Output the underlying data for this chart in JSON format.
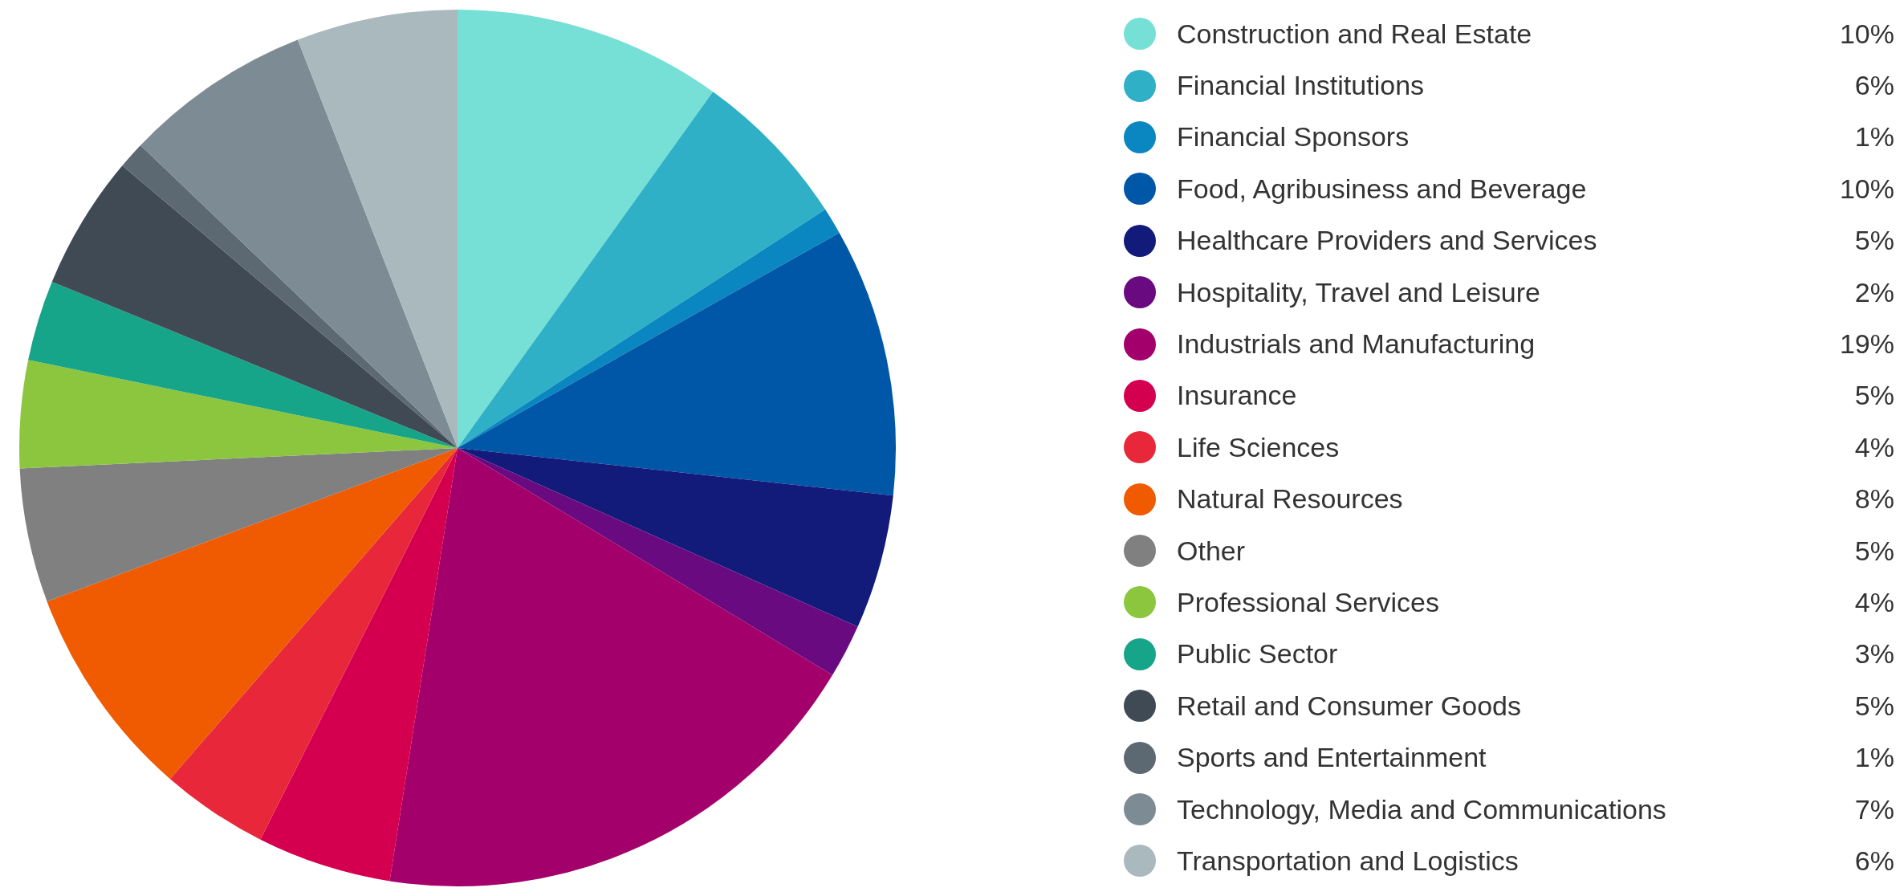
{
  "chart_data": {
    "type": "pie",
    "categories": [
      "Construction and Real Estate",
      "Financial Institutions",
      "Financial Sponsors",
      "Food, Agribusiness and Beverage",
      "Healthcare Providers and Services",
      "Hospitality, Travel and Leisure",
      "Industrials and Manufacturing",
      "Insurance",
      "Life Sciences",
      "Natural Resources",
      "Other",
      "Professional Services",
      "Public Sector",
      "Retail and Consumer Goods",
      "Sports and Entertainment",
      "Technology, Media and Communications",
      "Transportation and Logistics"
    ],
    "values": [
      10,
      6,
      1,
      10,
      5,
      2,
      19,
      5,
      4,
      8,
      5,
      4,
      3,
      5,
      1,
      7,
      6
    ],
    "value_labels": [
      "10%",
      "6%",
      "1%",
      "10%",
      "5%",
      "2%",
      "19%",
      "5%",
      "4%",
      "8%",
      "5%",
      "4%",
      "3%",
      "5%",
      "1%",
      "7%",
      "6%"
    ],
    "colors": [
      "#76e0d6",
      "#2fb0c6",
      "#0a86c0",
      "#0057a8",
      "#121a7a",
      "#6a0a80",
      "#a3006b",
      "#d4004f",
      "#e8283a",
      "#f05a00",
      "#808080",
      "#8cc63f",
      "#17a589",
      "#3f4a55",
      "#5c6872",
      "#7d8c94",
      "#aab9be"
    ],
    "legend": "right"
  }
}
